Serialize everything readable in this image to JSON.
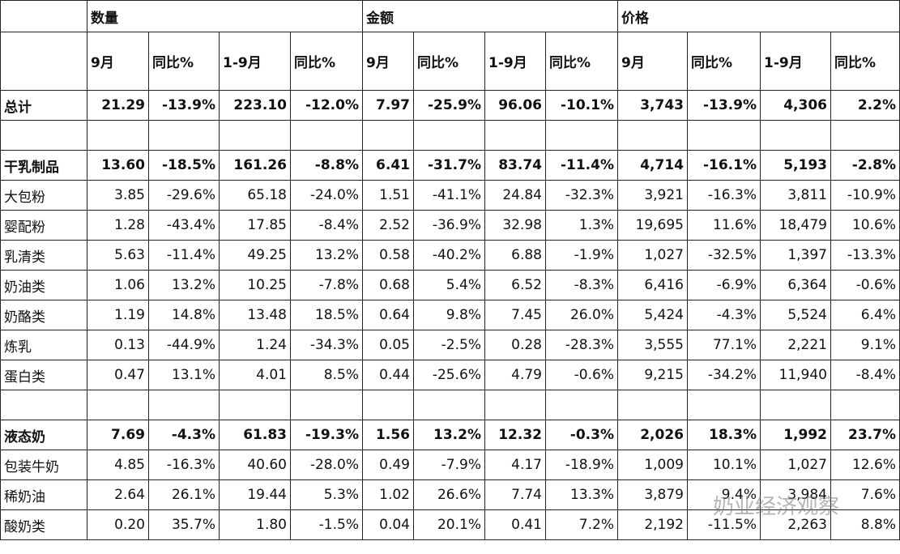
{
  "table": {
    "groups": [
      "数量",
      "金额",
      "价格"
    ],
    "subheaders": [
      "9月",
      "同比%",
      "1-9月",
      "同比%",
      "9月",
      "同比%",
      "1-9月",
      "同比%",
      "9月",
      "同比%",
      "1-9月",
      "同比%"
    ],
    "rows": [
      {
        "label": "总计",
        "bold": true,
        "cells": [
          "21.29",
          "-13.9%",
          "223.10",
          "-12.0%",
          "7.97",
          "-25.9%",
          "96.06",
          "-10.1%",
          "3,743",
          "-13.9%",
          "4,306",
          "2.2%"
        ]
      },
      null,
      {
        "label": "干乳制品",
        "bold": true,
        "cells": [
          "13.60",
          "-18.5%",
          "161.26",
          "-8.8%",
          "6.41",
          "-31.7%",
          "83.74",
          "-11.4%",
          "4,714",
          "-16.1%",
          "5,193",
          "-2.8%"
        ]
      },
      {
        "label": "大包粉",
        "bold": false,
        "cells": [
          "3.85",
          "-29.6%",
          "65.18",
          "-24.0%",
          "1.51",
          "-41.1%",
          "24.84",
          "-32.3%",
          "3,921",
          "-16.3%",
          "3,811",
          "-10.9%"
        ]
      },
      {
        "label": "婴配粉",
        "bold": false,
        "cells": [
          "1.28",
          "-43.4%",
          "17.85",
          "-8.4%",
          "2.52",
          "-36.9%",
          "32.98",
          "1.3%",
          "19,695",
          "11.6%",
          "18,479",
          "10.6%"
        ]
      },
      {
        "label": "乳清类",
        "bold": false,
        "cells": [
          "5.63",
          "-11.4%",
          "49.25",
          "13.2%",
          "0.58",
          "-40.2%",
          "6.88",
          "-1.9%",
          "1,027",
          "-32.5%",
          "1,397",
          "-13.3%"
        ]
      },
      {
        "label": "奶油类",
        "bold": false,
        "cells": [
          "1.06",
          "13.2%",
          "10.25",
          "-7.8%",
          "0.68",
          "5.4%",
          "6.52",
          "-8.3%",
          "6,416",
          "-6.9%",
          "6,364",
          "-0.6%"
        ]
      },
      {
        "label": "奶酪类",
        "bold": false,
        "cells": [
          "1.19",
          "14.8%",
          "13.48",
          "18.5%",
          "0.64",
          "9.8%",
          "7.45",
          "26.0%",
          "5,424",
          "-4.3%",
          "5,524",
          "6.4%"
        ]
      },
      {
        "label": "炼乳",
        "bold": false,
        "cells": [
          "0.13",
          "-44.9%",
          "1.24",
          "-34.3%",
          "0.05",
          "-2.5%",
          "0.28",
          "-28.3%",
          "3,555",
          "77.1%",
          "2,221",
          "9.1%"
        ]
      },
      {
        "label": "蛋白类",
        "bold": false,
        "cells": [
          "0.47",
          "13.1%",
          "4.01",
          "8.5%",
          "0.44",
          "-25.6%",
          "4.79",
          "-0.6%",
          "9,215",
          "-34.2%",
          "11,940",
          "-8.4%"
        ]
      },
      null,
      {
        "label": "液态奶",
        "bold": true,
        "cells": [
          "7.69",
          "-4.3%",
          "61.83",
          "-19.3%",
          "1.56",
          "13.2%",
          "12.32",
          "-0.3%",
          "2,026",
          "18.3%",
          "1,992",
          "23.7%"
        ]
      },
      {
        "label": "包装牛奶",
        "bold": false,
        "cells": [
          "4.85",
          "-16.3%",
          "40.60",
          "-28.0%",
          "0.49",
          "-7.9%",
          "4.17",
          "-18.9%",
          "1,009",
          "10.1%",
          "1,027",
          "12.6%"
        ]
      },
      {
        "label": "稀奶油",
        "bold": false,
        "cells": [
          "2.64",
          "26.1%",
          "19.44",
          "5.3%",
          "1.02",
          "26.6%",
          "7.74",
          "13.3%",
          "3,879",
          "9.4%",
          "3,984",
          "7.6%"
        ]
      },
      {
        "label": "酸奶类",
        "bold": false,
        "cells": [
          "0.20",
          "35.7%",
          "1.80",
          "-1.5%",
          "0.04",
          "20.1%",
          "0.41",
          "7.2%",
          "2,192",
          "-11.5%",
          "2,263",
          "8.8%"
        ]
      }
    ]
  },
  "watermark": "奶业经济观察"
}
